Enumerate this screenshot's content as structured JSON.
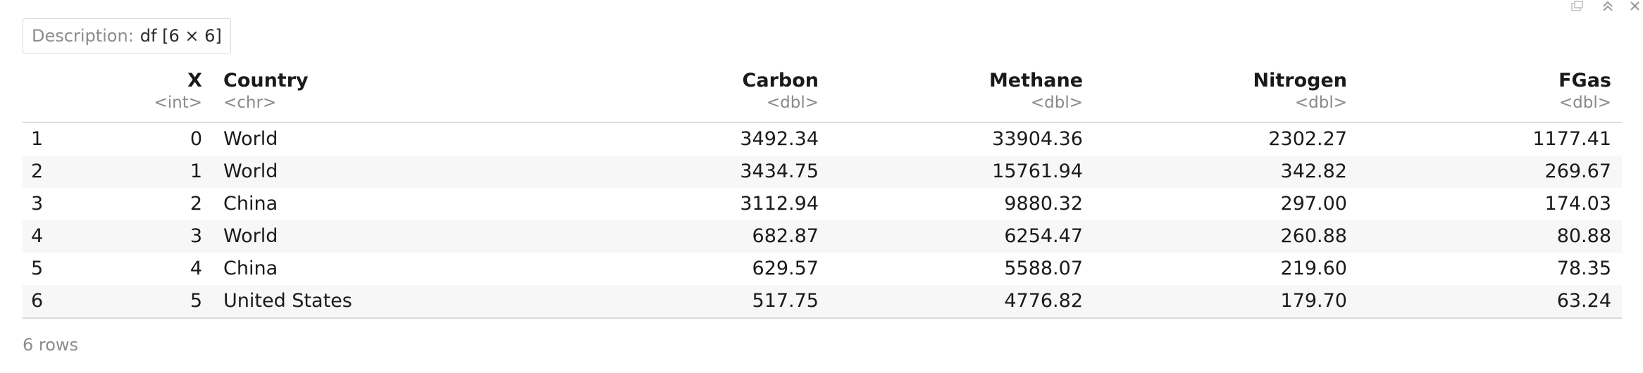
{
  "description": {
    "label": "Description:",
    "value": "df [6 × 6]"
  },
  "columns": [
    {
      "name": "",
      "type": ""
    },
    {
      "name": "X",
      "type": "<int>"
    },
    {
      "name": "Country",
      "type": "<chr>"
    },
    {
      "name": "Carbon",
      "type": "<dbl>"
    },
    {
      "name": "Methane",
      "type": "<dbl>"
    },
    {
      "name": "Nitrogen",
      "type": "<dbl>"
    },
    {
      "name": "FGas",
      "type": "<dbl>"
    }
  ],
  "rows": [
    [
      "1",
      "0",
      "World",
      "3492.34",
      "33904.36",
      "2302.27",
      "1177.41"
    ],
    [
      "2",
      "1",
      "World",
      "3434.75",
      "15761.94",
      "342.82",
      "269.67"
    ],
    [
      "3",
      "2",
      "China",
      "3112.94",
      "9880.32",
      "297.00",
      "174.03"
    ],
    [
      "4",
      "3",
      "World",
      "682.87",
      "6254.47",
      "260.88",
      "80.88"
    ],
    [
      "5",
      "4",
      "China",
      "629.57",
      "5588.07",
      "219.60",
      "78.35"
    ],
    [
      "6",
      "5",
      "United States",
      "517.75",
      "4776.82",
      "179.70",
      "63.24"
    ]
  ],
  "footer": {
    "row_count": "6 rows"
  },
  "icons": {
    "expand": "popout-icon",
    "collapse": "chevrons-up-icon",
    "close": "close-icon"
  }
}
